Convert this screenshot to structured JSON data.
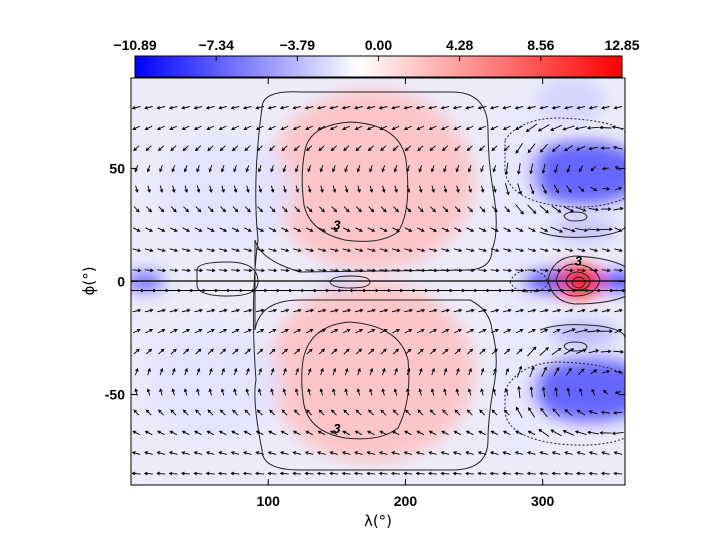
{
  "chart_data": {
    "type": "heatmap",
    "title": "",
    "xlabel": "λ(°)",
    "ylabel": "ϕ(°)",
    "xlim": [
      0,
      360
    ],
    "ylim": [
      -90,
      90
    ],
    "x_ticks": [
      100,
      200,
      300
    ],
    "y_ticks": [
      50,
      0,
      -50
    ],
    "colorbar": {
      "ticks": [
        "−10.89",
        "−7.34",
        "−3.79",
        "0.00",
        "4.28",
        "8.56",
        "12.85"
      ],
      "min": -10.89,
      "max": 12.85,
      "colors": {
        "low": "#0000ff",
        "mid": "#ffffff",
        "high": "#ff0000"
      }
    },
    "contour_labels": [
      {
        "text": "3",
        "lon": 150,
        "lat": 23
      },
      {
        "text": "3",
        "lon": 150,
        "lat": -67
      },
      {
        "text": "3",
        "lon": 326,
        "lat": 7
      }
    ],
    "field_blobs": [
      {
        "lon": 175,
        "lat": 45,
        "rlon": 75,
        "rlat": 40,
        "value": 3.2
      },
      {
        "lon": 175,
        "lat": -40,
        "rlon": 75,
        "rlat": 40,
        "value": 3.2
      },
      {
        "lon": 330,
        "lat": 48,
        "rlon": 45,
        "rlat": 14,
        "value": -7.5
      },
      {
        "lon": 335,
        "lat": -48,
        "rlon": 45,
        "rlat": 14,
        "value": -7.5
      },
      {
        "lon": 325,
        "lat": 0,
        "rlon": 20,
        "rlat": 7,
        "value": 12.85
      },
      {
        "lon": 300,
        "lat": 0,
        "rlon": 16,
        "rlat": 5,
        "value": -8.0
      },
      {
        "lon": 355,
        "lat": 0,
        "rlon": 14,
        "rlat": 4,
        "value": -9.5
      },
      {
        "lon": 10,
        "lat": 0,
        "rlon": 14,
        "rlat": 4,
        "value": -7.5
      },
      {
        "lon": 70,
        "lat": 40,
        "rlon": 50,
        "rlat": 25,
        "value": -1.2
      },
      {
        "lon": 60,
        "lat": -45,
        "rlon": 50,
        "rlat": 25,
        "value": -1.2
      },
      {
        "lon": 280,
        "lat": 40,
        "rlon": 15,
        "rlat": 40,
        "value": -1.0
      },
      {
        "lon": 280,
        "lat": -40,
        "rlon": 15,
        "rlat": 40,
        "value": -1.0
      },
      {
        "lon": 150,
        "lat": 0,
        "rlon": 14,
        "rlat": 4,
        "value": -2.0
      },
      {
        "lon": 330,
        "lat": -23,
        "rlon": 25,
        "rlat": 5,
        "value": -3.5
      },
      {
        "lon": 330,
        "lat": 23,
        "rlon": 25,
        "rlat": 5,
        "value": -3.0
      },
      {
        "lon": 320,
        "lat": 80,
        "rlon": 25,
        "rlat": 10,
        "value": -2.0
      }
    ]
  }
}
